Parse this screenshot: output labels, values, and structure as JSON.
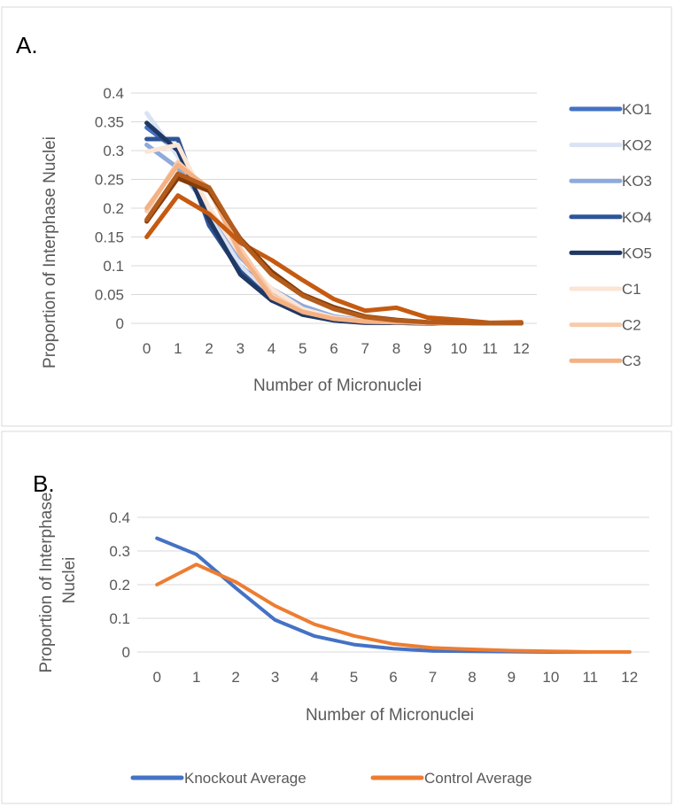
{
  "chart_data": [
    {
      "panel_label": "A.",
      "type": "line",
      "x": [
        0,
        1,
        2,
        3,
        4,
        5,
        6,
        7,
        8,
        9,
        10,
        11,
        12
      ],
      "xlabel": "Number of Micronuclei",
      "ylabel": "Proportion of Interphase Nuclei",
      "ylim": [
        0,
        0.4
      ],
      "yticks": [
        "0",
        "0.05",
        "0.1",
        "0.15",
        "0.2",
        "0.25",
        "0.3",
        "0.35",
        "0.4"
      ],
      "grid": true,
      "legend_position": "right",
      "series": [
        {
          "name": "KO1",
          "color": "#4472c4",
          "values": [
            0.34,
            0.3,
            0.18,
            0.1,
            0.05,
            0.025,
            0.01,
            0.005,
            0.003,
            0.001,
            0,
            0,
            0
          ]
        },
        {
          "name": "KO2",
          "color": "#dae3f3",
          "values": [
            0.365,
            0.29,
            0.19,
            0.1,
            0.045,
            0.02,
            0.008,
            0.003,
            0.002,
            0.001,
            0,
            0,
            0
          ]
        },
        {
          "name": "KO3",
          "color": "#8faadc",
          "values": [
            0.31,
            0.27,
            0.2,
            0.115,
            0.06,
            0.03,
            0.012,
            0.005,
            0.003,
            0.001,
            0,
            0,
            0
          ]
        },
        {
          "name": "KO4",
          "color": "#2f5597",
          "values": [
            0.32,
            0.32,
            0.17,
            0.09,
            0.04,
            0.018,
            0.007,
            0.002,
            0.001,
            0,
            0,
            0,
            0
          ]
        },
        {
          "name": "KO5",
          "color": "#203864",
          "values": [
            0.348,
            0.3,
            0.18,
            0.085,
            0.04,
            0.015,
            0.005,
            0.001,
            0.001,
            0,
            0,
            0,
            0
          ]
        },
        {
          "name": "C1",
          "color": "#fbe5d6",
          "values": [
            0.298,
            0.31,
            0.2,
            0.12,
            0.06,
            0.025,
            0.01,
            0.004,
            0.002,
            0.001,
            0,
            0,
            0
          ]
        },
        {
          "name": "C2",
          "color": "#f8cbad",
          "values": [
            0.195,
            0.28,
            0.23,
            0.13,
            0.05,
            0.02,
            0.008,
            0.004,
            0.002,
            0.001,
            0,
            0,
            0
          ]
        },
        {
          "name": "C3",
          "color": "#f4b183",
          "values": [
            0.2,
            0.275,
            0.235,
            0.12,
            0.045,
            0.02,
            0.008,
            0.003,
            0.002,
            0.001,
            0,
            0,
            0
          ]
        },
        {
          "name": "",
          "color": "#c55a11",
          "values": [
            0.15,
            0.222,
            0.19,
            0.14,
            0.11,
            0.075,
            0.042,
            0.022,
            0.027,
            0.01,
            0.006,
            0.001,
            0.002
          ]
        },
        {
          "name": "",
          "color": "#843c0c",
          "values": [
            0.177,
            0.252,
            0.23,
            0.147,
            0.09,
            0.05,
            0.028,
            0.012,
            0.006,
            0.002,
            0.001,
            0,
            0
          ]
        },
        {
          "name": "",
          "color": "#b45c1b",
          "values": [
            0.18,
            0.26,
            0.236,
            0.145,
            0.085,
            0.048,
            0.025,
            0.011,
            0.005,
            0.002,
            0.001,
            0,
            0
          ]
        }
      ]
    },
    {
      "panel_label": "B.",
      "type": "line",
      "x": [
        0,
        1,
        2,
        3,
        4,
        5,
        6,
        7,
        8,
        9,
        10,
        11,
        12
      ],
      "xlabel": "Number of Micronuclei",
      "ylabel": "Proportion of Interphase Nuclei",
      "ylim": [
        0,
        0.4
      ],
      "yticks": [
        "0",
        "0.1",
        "0.2",
        "0.3",
        "0.4"
      ],
      "grid": true,
      "legend_position": "bottom",
      "series": [
        {
          "name": "Knockout Average",
          "color": "#4472c4",
          "values": [
            0.338,
            0.29,
            0.19,
            0.095,
            0.047,
            0.022,
            0.01,
            0.003,
            0.002,
            0.001,
            0,
            0,
            0
          ]
        },
        {
          "name": "Control Average",
          "color": "#ed7d31",
          "values": [
            0.2,
            0.26,
            0.208,
            0.137,
            0.082,
            0.048,
            0.024,
            0.012,
            0.008,
            0.004,
            0.002,
            0,
            0
          ]
        }
      ]
    }
  ]
}
